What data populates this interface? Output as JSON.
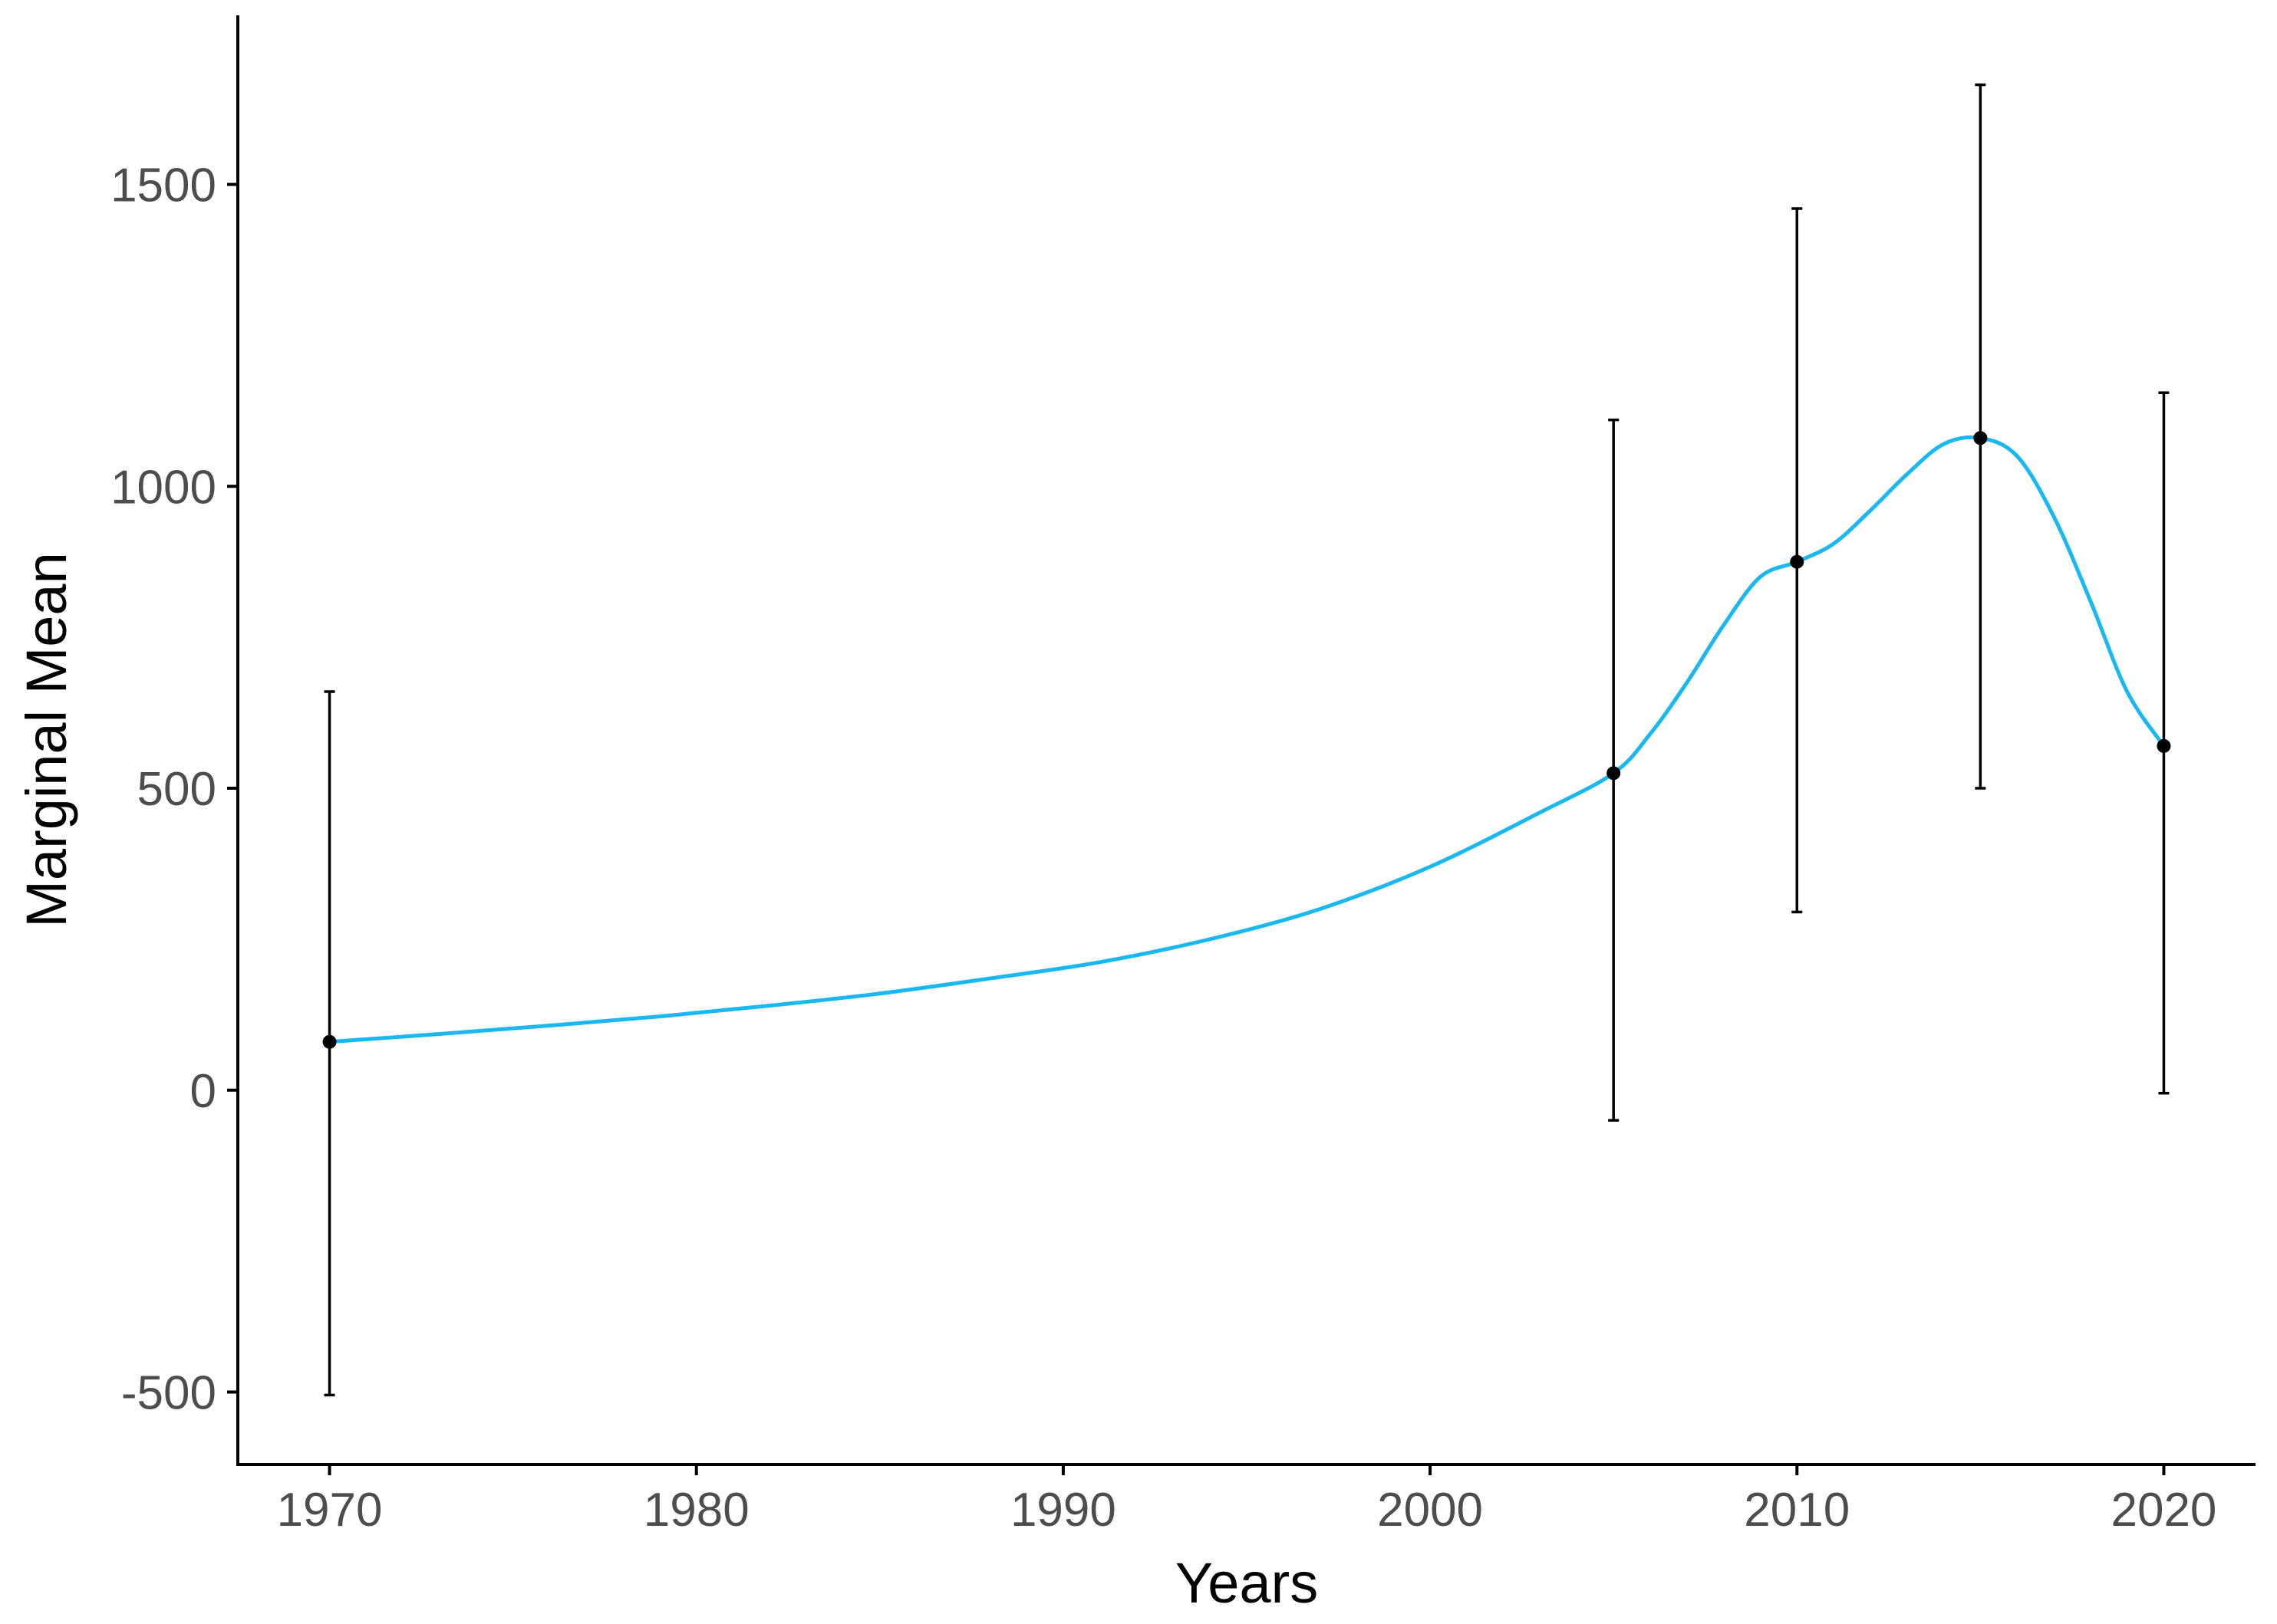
{
  "chart_data": {
    "type": "line",
    "title": "",
    "xlabel": "Years",
    "ylabel": "Marginal Mean",
    "xlim": [
      1967.5,
      2022.5
    ],
    "ylim": [
      -620,
      1780
    ],
    "x_ticks": [
      1970,
      1980,
      1990,
      2000,
      2010,
      2020
    ],
    "x_tick_labels": [
      "1970",
      "1980",
      "1990",
      "2000",
      "2010",
      "2020"
    ],
    "y_ticks": [
      -500,
      0,
      500,
      1000,
      1500
    ],
    "y_tick_labels": [
      "-500",
      "0",
      "500",
      "1000",
      "1500"
    ],
    "grid": false,
    "legend": "none",
    "colors": {
      "line": "#1ab8f0",
      "points": "#000000",
      "error_bars": "#000000",
      "axis": "#000000",
      "tick_label": "#4d4d4d"
    },
    "points": [
      {
        "x": 1970,
        "y": 80,
        "lower": -505,
        "upper": 660
      },
      {
        "x": 2005,
        "y": 525,
        "lower": -50,
        "upper": 1110
      },
      {
        "x": 2010,
        "y": 875,
        "lower": 295,
        "upper": 1460
      },
      {
        "x": 2015,
        "y": 1080,
        "lower": 500,
        "upper": 1665
      },
      {
        "x": 2020,
        "y": 570,
        "lower": -5,
        "upper": 1155
      }
    ],
    "line": {
      "x": [
        1970,
        1973,
        1976,
        1979,
        1982,
        1985,
        1988,
        1991,
        1994,
        1997,
        2000,
        2003,
        2005,
        2006,
        2007,
        2008,
        2009,
        2010,
        2011,
        2012,
        2013,
        2014,
        2015,
        2016,
        2017,
        2018,
        2019,
        2020
      ],
      "y": [
        80,
        93,
        107,
        122,
        140,
        160,
        185,
        212,
        250,
        300,
        370,
        460,
        525,
        590,
        675,
        770,
        850,
        875,
        905,
        960,
        1020,
        1070,
        1080,
        1050,
        950,
        810,
        660,
        570
      ]
    }
  }
}
